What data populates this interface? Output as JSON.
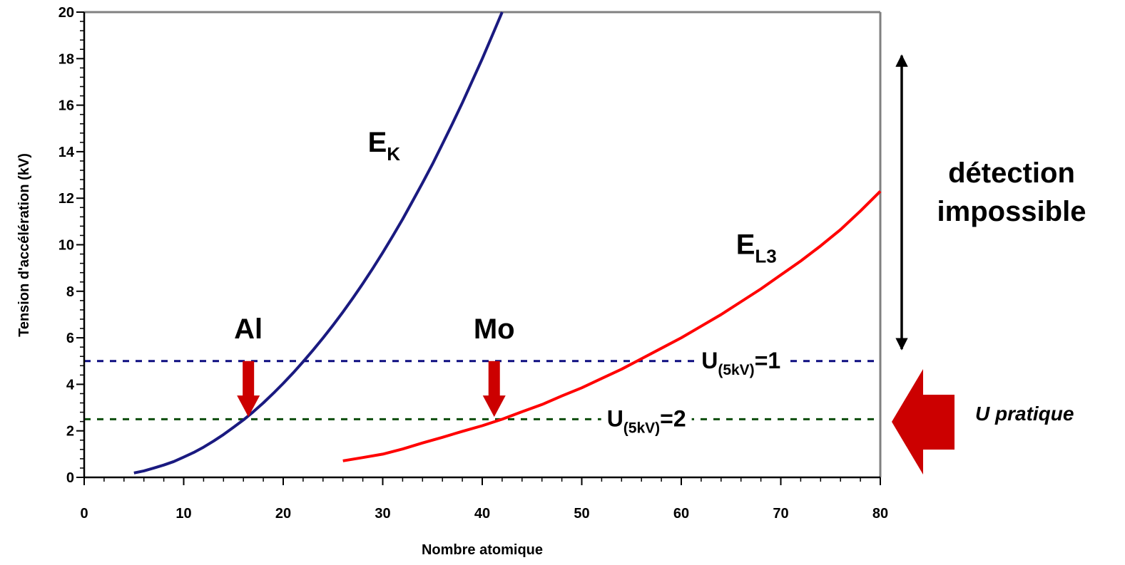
{
  "chart_data": {
    "type": "line",
    "xlabel": "Nombre atomique",
    "ylabel": "Tension d'accélération (kV)",
    "xlim": [
      0,
      80
    ],
    "ylim": [
      0,
      20
    ],
    "x_ticks": [
      "0",
      "10",
      "20",
      "30",
      "40",
      "50",
      "60",
      "70",
      "80"
    ],
    "y_ticks": [
      "0",
      "2",
      "4",
      "6",
      "8",
      "10",
      "12",
      "14",
      "16",
      "18",
      "20"
    ],
    "grid": false,
    "series": [
      {
        "name": "E",
        "subscript": "K",
        "color": "#1a1a80",
        "x": [
          5,
          6,
          7,
          8,
          9,
          10,
          11,
          12,
          13,
          14,
          15,
          16,
          17,
          18,
          19,
          20,
          21,
          22,
          23,
          24,
          25,
          26,
          27,
          28,
          29,
          30,
          31,
          32,
          33,
          34,
          35,
          36,
          37,
          38,
          39,
          40,
          41,
          42
        ],
        "y": [
          0.19,
          0.28,
          0.4,
          0.53,
          0.68,
          0.87,
          1.07,
          1.3,
          1.56,
          1.84,
          2.15,
          2.47,
          2.82,
          3.2,
          3.61,
          4.04,
          4.49,
          4.97,
          5.47,
          5.99,
          6.54,
          7.11,
          7.71,
          8.33,
          8.98,
          9.66,
          10.37,
          11.1,
          11.87,
          12.66,
          13.47,
          14.33,
          15.2,
          16.1,
          17.04,
          17.99,
          18.99,
          20.0
        ]
      },
      {
        "name": "E",
        "subscript": "L3",
        "color": "#ff0000",
        "x": [
          26,
          28,
          30,
          32,
          34,
          36,
          38,
          40,
          42,
          44,
          46,
          48,
          50,
          52,
          54,
          56,
          58,
          60,
          62,
          64,
          66,
          68,
          70,
          72,
          74,
          76,
          78,
          80
        ],
        "y": [
          0.71,
          0.85,
          1.0,
          1.22,
          1.48,
          1.72,
          1.98,
          2.22,
          2.5,
          2.82,
          3.13,
          3.5,
          3.85,
          4.25,
          4.65,
          5.1,
          5.55,
          6.0,
          6.5,
          7.0,
          7.55,
          8.1,
          8.7,
          9.3,
          9.95,
          10.65,
          11.45,
          12.3
        ]
      }
    ],
    "thresholds": [
      {
        "y": 5,
        "color": "#0d0d80",
        "label_prefix": "U",
        "label_sub": "(5kV)",
        "label_suffix": "=1",
        "label_x": 66
      },
      {
        "y": 2.5,
        "color": "#0d4d0d",
        "label_prefix": "U",
        "label_sub": "(5kV)",
        "label_suffix": "=2",
        "label_x": 56.5
      }
    ],
    "elements": [
      {
        "label": "Al",
        "x": 16.5,
        "arrow_top_y": 5.0,
        "arrow_tip_y": 2.6
      },
      {
        "label": "Mo",
        "x": 41.2,
        "arrow_top_y": 5.0,
        "arrow_tip_y": 2.6
      }
    ],
    "curve_labels": [
      {
        "main": "E",
        "sub": "K",
        "x": 28.5,
        "y": 14.0
      },
      {
        "main": "E",
        "sub": "L3",
        "x": 65.5,
        "y": 9.6
      }
    ],
    "annotations": {
      "detection_line1": "détection",
      "detection_line2": "impossible",
      "pratique": "U pratique"
    }
  }
}
